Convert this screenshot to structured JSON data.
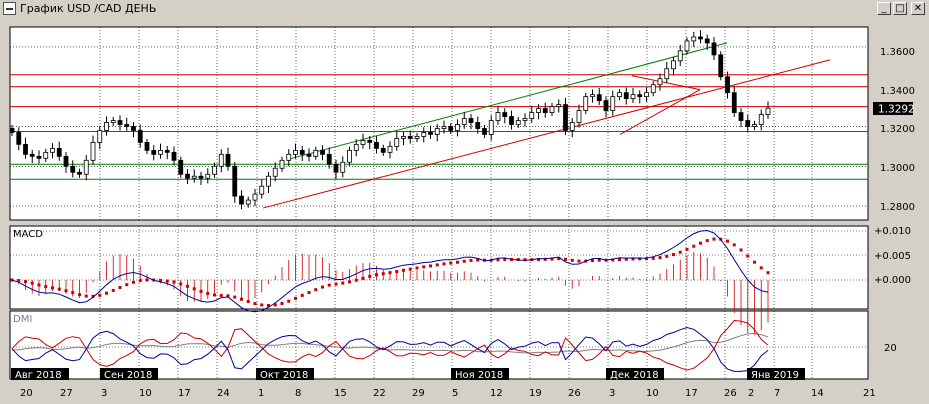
{
  "window": {
    "title": "График USD /CAD  ДЕНЬ",
    "buttons": {
      "minimize": "_",
      "maximize": "□",
      "close": "✕"
    }
  },
  "colors": {
    "background": "#ffffff",
    "grid": "#000000",
    "channel_upper": "#008000",
    "support_trend": "#cc0000",
    "resistance_levels": "#cc0000",
    "support_levels": "#008000",
    "macd_line": "#000099",
    "signal_line": "#cc0000",
    "dmi_plus": "#000099",
    "dmi_minus": "#cc0000",
    "adx": "#808080"
  },
  "main_panel": {
    "price_label": "1.3292",
    "y_ticks": [
      "1.3600",
      "1.3400",
      "1.3200",
      "1.3000",
      "1.2800"
    ]
  },
  "macd_panel": {
    "label": "MACD",
    "y_ticks": [
      "+0.010",
      "+0.005",
      "+0.000"
    ]
  },
  "dmi_panel": {
    "label": "DMI",
    "y_ticks": [
      "20"
    ]
  },
  "x_axis": {
    "month_labels": [
      "Авг 2018",
      "Сен 2018",
      "Окт 2018",
      "Ноя 2018",
      "Дек 2018",
      "Янв 2019"
    ],
    "day_labels": [
      "20",
      "27",
      "3",
      "10",
      "17",
      "24",
      "1",
      "8",
      "15",
      "22",
      "29",
      "5",
      "12",
      "19",
      "26",
      "3",
      "10",
      "17",
      "26",
      "2",
      "7",
      "14",
      "21"
    ]
  },
  "chart_data": {
    "type": "candlestick",
    "symbol": "USD/CAD",
    "timeframe": "ДЕНЬ",
    "ylim": [
      1.273,
      1.37
    ],
    "last_price": 1.3292,
    "horizontal_levels": {
      "resistance": [
        1.346,
        1.34,
        1.33
      ],
      "support": [
        1.3175,
        1.301,
        1.2935
      ]
    },
    "closes": [
      1.317,
      1.311,
      1.306,
      1.305,
      1.304,
      1.307,
      1.309,
      1.305,
      1.3,
      1.297,
      1.296,
      1.303,
      1.312,
      1.318,
      1.322,
      1.323,
      1.321,
      1.32,
      1.318,
      1.312,
      1.308,
      1.306,
      1.308,
      1.307,
      1.303,
      1.296,
      1.294,
      1.295,
      1.294,
      1.296,
      1.3,
      1.306,
      1.3,
      1.285,
      1.281,
      1.283,
      1.286,
      1.29,
      1.295,
      1.299,
      1.303,
      1.306,
      1.308,
      1.306,
      1.305,
      1.308,
      1.306,
      1.301,
      1.297,
      1.302,
      1.308,
      1.311,
      1.313,
      1.312,
      1.309,
      1.307,
      1.31,
      1.314,
      1.315,
      1.314,
      1.315,
      1.317,
      1.316,
      1.319,
      1.32,
      1.318,
      1.321,
      1.324,
      1.322,
      1.319,
      1.316,
      1.323,
      1.327,
      1.325,
      1.321,
      1.323,
      1.324,
      1.327,
      1.329,
      1.327,
      1.33,
      1.331,
      1.318,
      1.322,
      1.328,
      1.335,
      1.336,
      1.333,
      1.328,
      1.335,
      1.337,
      1.334,
      1.336,
      1.335,
      1.337,
      1.341,
      1.344,
      1.349,
      1.353,
      1.358,
      1.363,
      1.365,
      1.364,
      1.362,
      1.356,
      1.345,
      1.337,
      1.327,
      1.323,
      1.32,
      1.321,
      1.326,
      1.3292
    ]
  }
}
